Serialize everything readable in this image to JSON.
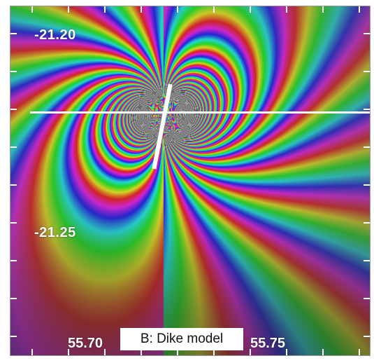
{
  "panel": {
    "caption": "B: Dike model",
    "lat_labels": {
      "top": "-21.20",
      "bottom": "-21.25"
    },
    "lon_labels": {
      "left": "55.70",
      "right": "55.75"
    }
  },
  "colors": {
    "frame": "#9a9a9a",
    "lines": "#ffffff",
    "background": "#4a3a8c"
  }
}
